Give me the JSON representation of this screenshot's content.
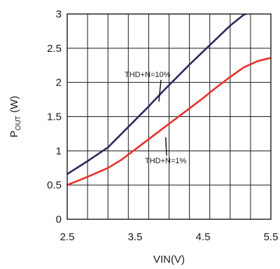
{
  "chart_data": {
    "type": "line",
    "xlabel": "VIN(V)",
    "ylabel": {
      "main": "P",
      "sub": "OUT",
      "unit": " (W)"
    },
    "xlim": [
      2.5,
      5.5
    ],
    "ylim": [
      0,
      3
    ],
    "x_ticks": [
      2.5,
      3.5,
      4.5,
      5.5
    ],
    "x_tick_labels": [
      "2.5",
      "3.5",
      "4.5",
      "5.5"
    ],
    "y_ticks": [
      0,
      0.5,
      1,
      1.5,
      2,
      2.5,
      3
    ],
    "y_tick_labels": [
      "0",
      "0.5",
      "1",
      "1.5",
      "2",
      "2.5",
      "3"
    ],
    "x_grid": [
      2.5,
      2.8,
      3.1,
      3.4,
      3.7,
      4.0,
      4.3,
      4.6,
      4.9,
      5.2,
      5.5
    ],
    "grid": true,
    "series": [
      {
        "name": "THD+N=10%",
        "color": "#2d2a5e",
        "x": [
          2.5,
          2.8,
          3.1,
          3.3,
          3.5,
          3.7,
          3.9,
          4.1,
          4.3,
          4.5,
          4.7,
          4.9,
          5.1,
          5.3,
          5.5
        ],
        "y": [
          0.66,
          0.85,
          1.05,
          1.25,
          1.45,
          1.65,
          1.86,
          2.06,
          2.26,
          2.45,
          2.64,
          2.83,
          2.99,
          3.05,
          3.1
        ]
      },
      {
        "name": "THD+N=1%",
        "color": "#e8302a",
        "x": [
          2.5,
          2.8,
          3.1,
          3.3,
          3.5,
          3.7,
          3.9,
          4.1,
          4.3,
          4.5,
          4.7,
          4.9,
          5.1,
          5.3,
          5.5
        ],
        "y": [
          0.5,
          0.62,
          0.75,
          0.87,
          1.02,
          1.17,
          1.32,
          1.47,
          1.62,
          1.77,
          1.93,
          2.08,
          2.22,
          2.31,
          2.36
        ]
      }
    ],
    "annotations": [
      {
        "text": "THD+N=10%",
        "at_x": 3.85,
        "at_y": 1.72
      },
      {
        "text": "THD+N=1%",
        "at_x": 3.95,
        "at_y": 1.2
      }
    ]
  }
}
